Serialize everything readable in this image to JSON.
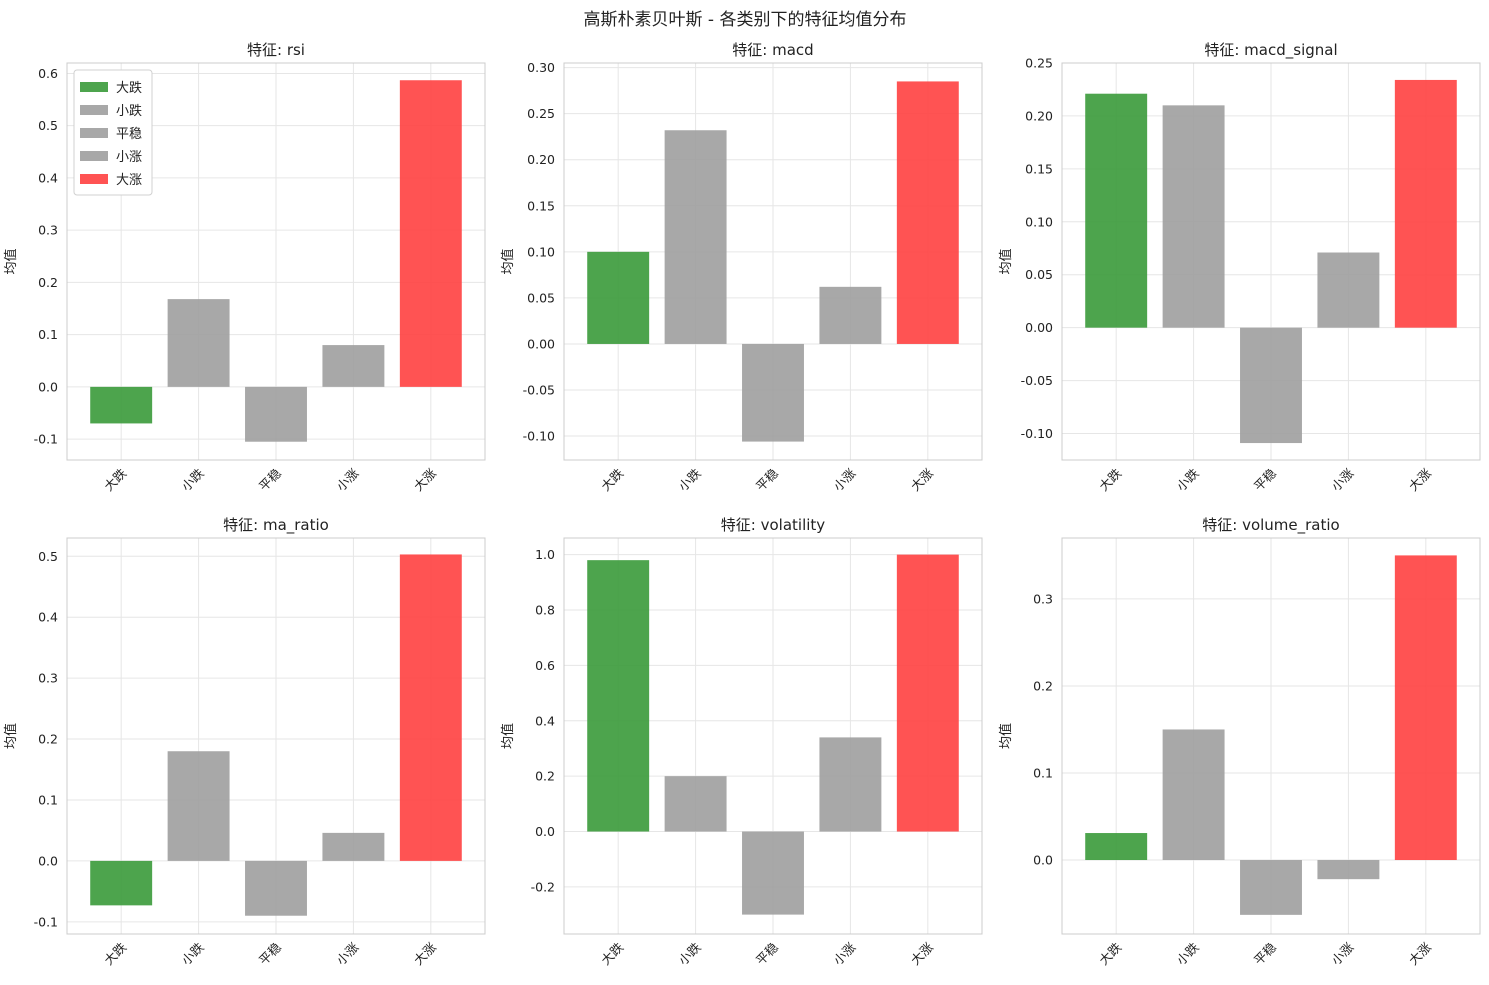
{
  "suptitle": "高斯朴素贝叶斯 - 各类别下的特征均值分布",
  "colors": {
    "down_big": "#3a9a3a",
    "neutral": "#9e9e9e",
    "up_big": "#ff4040",
    "grid": "#e6e6e6",
    "frame": "#cccccc"
  },
  "legend": {
    "panel": 0,
    "placement": "upper-left",
    "items": [
      {
        "label": "大跌",
        "color": "#3a9a3a"
      },
      {
        "label": "小跌",
        "color": "#9e9e9e"
      },
      {
        "label": "平稳",
        "color": "#9e9e9e"
      },
      {
        "label": "小涨",
        "color": "#9e9e9e"
      },
      {
        "label": "大涨",
        "color": "#ff4040"
      }
    ]
  },
  "chart_data": [
    {
      "type": "bar",
      "title": "特征: rsi",
      "ylabel": "均值",
      "categories": [
        "大跌",
        "小跌",
        "平稳",
        "小涨",
        "大涨"
      ],
      "values": [
        -0.07,
        0.168,
        -0.105,
        0.08,
        0.587
      ],
      "ylim": [
        -0.14,
        0.62
      ],
      "yticks": [
        -0.1,
        0.0,
        0.1,
        0.2,
        0.3,
        0.4,
        0.5,
        0.6
      ],
      "tick_decimals": 1,
      "grid": true
    },
    {
      "type": "bar",
      "title": "特征: macd",
      "ylabel": "均值",
      "categories": [
        "大跌",
        "小跌",
        "平稳",
        "小涨",
        "大涨"
      ],
      "values": [
        0.1,
        0.232,
        -0.106,
        0.062,
        0.285
      ],
      "ylim": [
        -0.126,
        0.305
      ],
      "yticks": [
        -0.1,
        -0.05,
        0.0,
        0.05,
        0.1,
        0.15,
        0.2,
        0.25,
        0.3
      ],
      "tick_decimals": 2,
      "grid": true
    },
    {
      "type": "bar",
      "title": "特征: macd_signal",
      "ylabel": "均值",
      "categories": [
        "大跌",
        "小跌",
        "平稳",
        "小涨",
        "大涨"
      ],
      "values": [
        0.221,
        0.21,
        -0.109,
        0.071,
        0.234
      ],
      "ylim": [
        -0.125,
        0.25
      ],
      "yticks": [
        -0.1,
        -0.05,
        0.0,
        0.05,
        0.1,
        0.15,
        0.2,
        0.25
      ],
      "tick_decimals": 2,
      "grid": true
    },
    {
      "type": "bar",
      "title": "特征: ma_ratio",
      "ylabel": "均值",
      "categories": [
        "大跌",
        "小跌",
        "平稳",
        "小涨",
        "大涨"
      ],
      "values": [
        -0.073,
        0.18,
        -0.09,
        0.046,
        0.503
      ],
      "ylim": [
        -0.12,
        0.53
      ],
      "yticks": [
        -0.1,
        0.0,
        0.1,
        0.2,
        0.3,
        0.4,
        0.5
      ],
      "tick_decimals": 1,
      "grid": true
    },
    {
      "type": "bar",
      "title": "特征: volatility",
      "ylabel": "均值",
      "categories": [
        "大跌",
        "小跌",
        "平稳",
        "小涨",
        "大涨"
      ],
      "values": [
        0.98,
        0.2,
        -0.3,
        0.34,
        1.0
      ],
      "ylim": [
        -0.37,
        1.06
      ],
      "yticks": [
        -0.2,
        0.0,
        0.2,
        0.4,
        0.6,
        0.8,
        1.0
      ],
      "tick_decimals": 1,
      "grid": true
    },
    {
      "type": "bar",
      "title": "特征: volume_ratio",
      "ylabel": "均值",
      "categories": [
        "大跌",
        "小跌",
        "平稳",
        "小涨",
        "大涨"
      ],
      "values": [
        0.031,
        0.15,
        -0.063,
        -0.022,
        0.35
      ],
      "ylim": [
        -0.085,
        0.37
      ],
      "yticks": [
        0.0,
        0.1,
        0.2,
        0.3
      ],
      "tick_decimals": 1,
      "grid": true
    }
  ]
}
